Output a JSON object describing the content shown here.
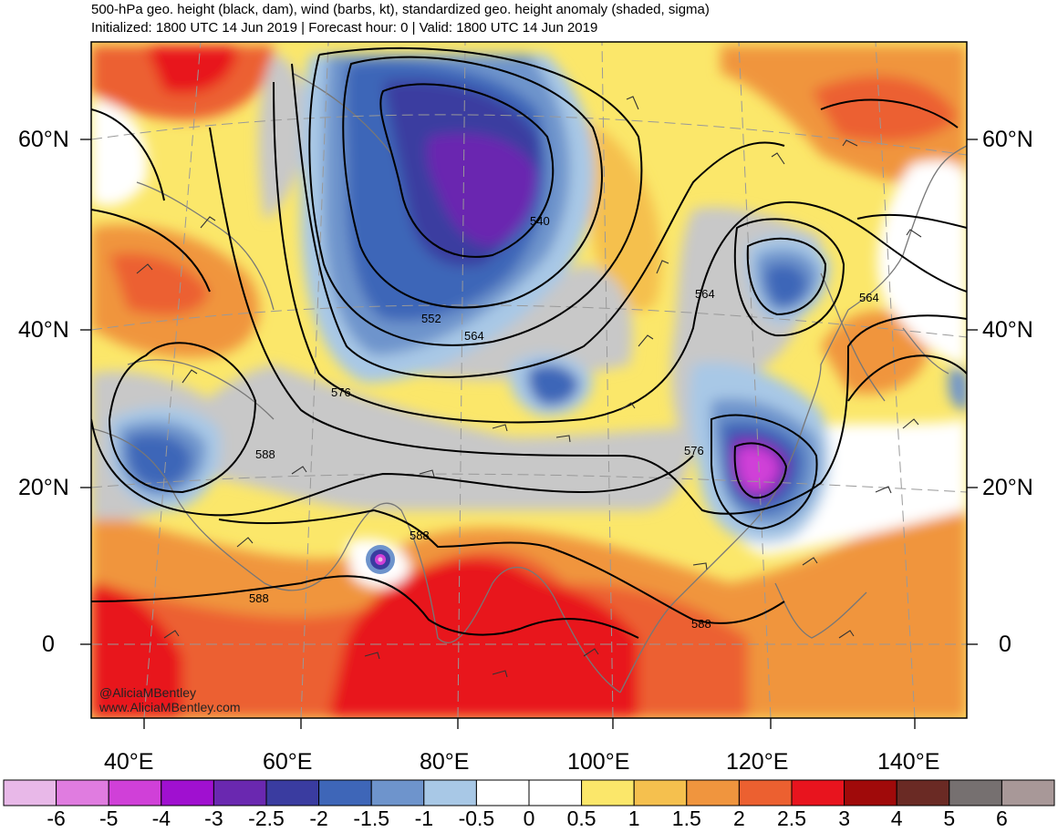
{
  "header": {
    "title": "500-hPa geo. height (black, dam), wind (barbs, kt), standardized geo. height anomaly (shaded, sigma)",
    "subtitle": "Initialized: 1800 UTC 14 Jun 2019 | Forecast hour: 0 | Valid: 1800 UTC 14 Jun 2019"
  },
  "map": {
    "lat_labels": [
      "60°N",
      "40°N",
      "20°N",
      "0"
    ],
    "lon_labels": [
      "40°E",
      "60°E",
      "80°E",
      "100°E",
      "120°E",
      "140°E"
    ],
    "contour_labels": [
      "540",
      "552",
      "564",
      "564",
      "564",
      "576",
      "576",
      "588",
      "588",
      "588",
      "588"
    ],
    "credits": [
      "@AliciaMBentley",
      "www.AliciaMBentley.com"
    ],
    "colors": {
      "land": "#9a9a9a",
      "contour": "#000000",
      "barb": "#333333"
    }
  },
  "colorbar": {
    "labels": [
      "-6",
      "-5",
      "-4",
      "-3",
      "-2.5",
      "-2",
      "-1.5",
      "-1",
      "-0.5",
      "0",
      "0.5",
      "1",
      "1.5",
      "2",
      "2.5",
      "3",
      "4",
      "5",
      "6"
    ],
    "colors": [
      "#e8b8e8",
      "#e07ce0",
      "#d040d8",
      "#a010d0",
      "#6a28b0",
      "#3a3ca0",
      "#3e66b8",
      "#6e94cc",
      "#a8c8e6",
      "#ffffff",
      "#ffffff",
      "#fbe76a",
      "#f5c04e",
      "#f0953e",
      "#ec6030",
      "#e8141e",
      "#a00a0a",
      "#6a2a24",
      "#767070",
      "#a89898"
    ]
  }
}
